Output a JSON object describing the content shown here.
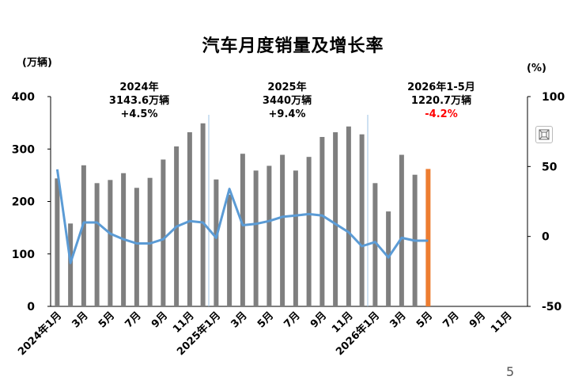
{
  "chart_data": {
    "type": "bar+line",
    "title": "汽车月度销量及增长率",
    "y_left_unit": "(万辆)",
    "y_right_unit": "(%)",
    "y_left_range": [
      0,
      400
    ],
    "y_right_range": [
      -50,
      100
    ],
    "y_left_ticks": [
      "0",
      "100",
      "200",
      "300",
      "400"
    ],
    "y_right_ticks": [
      "-50",
      "0",
      "50",
      "100"
    ],
    "x_tick_labels": [
      "2024年1月",
      "3月",
      "5月",
      "7月",
      "9月",
      "11月",
      "2025年1月",
      "3月",
      "5月",
      "7月",
      "9月",
      "11月",
      "2026年1月",
      "3月",
      "5月",
      "7月",
      "9月",
      "11月"
    ],
    "months_total": 36,
    "sales": [
      244,
      158,
      269,
      235,
      241,
      254,
      226,
      245,
      280,
      305,
      332,
      349,
      242,
      213,
      291,
      259,
      268,
      289,
      259,
      285,
      323,
      332,
      343,
      328,
      235,
      181,
      289,
      251,
      262
    ],
    "growth": [
      48,
      -19,
      10,
      10,
      2,
      -2,
      -5,
      -5,
      -2,
      7,
      11,
      10,
      -1,
      34,
      8,
      9,
      11,
      14,
      15,
      16,
      15,
      9,
      3,
      -7,
      -4,
      -15,
      -1,
      -3,
      -3
    ],
    "highlight_index": 28,
    "bar_color": "#7f7f7f",
    "highlight_color": "#ed7d31",
    "line_color": "#5b9bd5",
    "year_dividers_after": [
      12,
      24
    ],
    "annotations": [
      {
        "year": "2024年",
        "total": "3143.6万辆",
        "growth": "+4.5%",
        "growth_color": "#000000"
      },
      {
        "year": "2025年",
        "total": "3440万辆",
        "growth": "+9.4%",
        "growth_color": "#000000"
      },
      {
        "year": "2026年1-5月",
        "total": "1220.7万辆",
        "growth": "-4.2%",
        "growth_color": "#ff0000"
      }
    ]
  },
  "page_number": "5",
  "icons": {
    "expand": "expand-icon"
  }
}
